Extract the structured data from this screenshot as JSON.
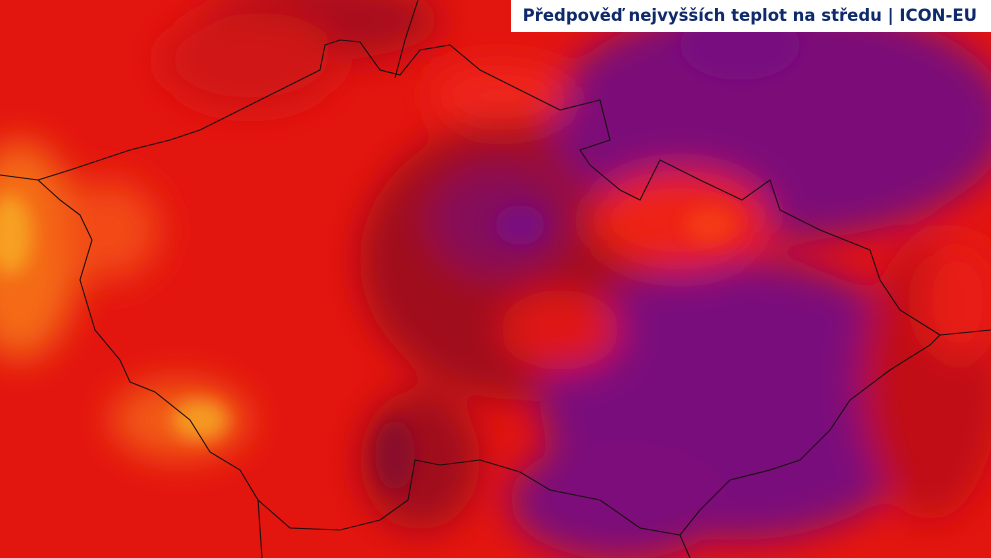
{
  "header": {
    "title": "Předpověď nejvyšších teplot na středu | ICON-EU"
  }
}
